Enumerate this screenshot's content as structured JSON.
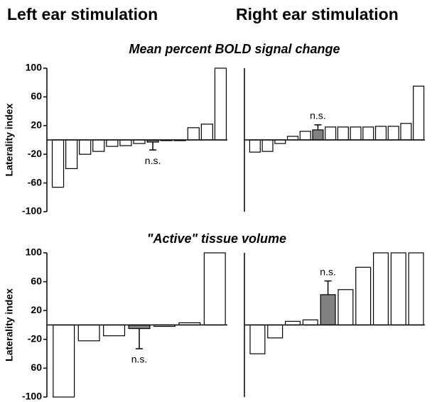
{
  "headers": [
    "Left ear stimulation",
    "Right ear stimulation"
  ],
  "sections": [
    "Mean percent BOLD signal change",
    "\"Active\" tissue volume"
  ],
  "chart_data": [
    {
      "type": "bar",
      "ylabel": "Laterality index",
      "ylim": [
        -100,
        100
      ],
      "yticks": [
        100,
        60,
        20,
        -20,
        -60,
        -100
      ],
      "categories": [
        null,
        null,
        null,
        null,
        null,
        null,
        null,
        null,
        null,
        null,
        null,
        null,
        null
      ],
      "values": [
        -66,
        -40,
        -20,
        -16,
        -9,
        -8,
        -5,
        -3,
        -1,
        -1,
        17,
        22,
        100
      ],
      "colors": [
        "#ffffff",
        "#ffffff",
        "#ffffff",
        "#ffffff",
        "#ffffff",
        "#ffffff",
        "#ffffff",
        "#808080",
        "#ffffff",
        "#ffffff",
        "#ffffff",
        "#ffffff",
        "#ffffff"
      ],
      "errors": [
        null,
        null,
        null,
        null,
        null,
        null,
        null,
        11,
        null,
        null,
        null,
        null,
        null
      ],
      "annotation": "n.s."
    },
    {
      "type": "bar",
      "ylim": [
        -100,
        100
      ],
      "categories": [
        null,
        null,
        null,
        null,
        null,
        null,
        null,
        null,
        null,
        null,
        null,
        null,
        null,
        null
      ],
      "values": [
        -17,
        -16,
        -5,
        5,
        12,
        14,
        18,
        18,
        18,
        18,
        19,
        19,
        23,
        75
      ],
      "colors": [
        "#ffffff",
        "#ffffff",
        "#ffffff",
        "#ffffff",
        "#ffffff",
        "#808080",
        "#ffffff",
        "#ffffff",
        "#ffffff",
        "#ffffff",
        "#ffffff",
        "#ffffff",
        "#ffffff",
        "#ffffff"
      ],
      "errors": [
        null,
        null,
        null,
        null,
        null,
        7,
        null,
        null,
        null,
        null,
        null,
        null,
        null,
        null
      ],
      "annotation": "n.s."
    },
    {
      "type": "bar",
      "ylabel": "Laterality index",
      "ylim": [
        -100,
        100
      ],
      "yticks": [
        100,
        60,
        20,
        -20,
        {
          "value": -60,
          "label": "60"
        },
        -100
      ],
      "categories": [
        null,
        null,
        null,
        null,
        null,
        null,
        null
      ],
      "values": [
        -100,
        -22,
        -15,
        -5,
        -2,
        3,
        100
      ],
      "colors": [
        "#ffffff",
        "#ffffff",
        "#ffffff",
        "#808080",
        "#ffffff",
        "#ffffff",
        "#ffffff"
      ],
      "errors": [
        null,
        null,
        null,
        28,
        null,
        null,
        null
      ],
      "annotation": "n.s."
    },
    {
      "type": "bar",
      "ylim": [
        -100,
        100
      ],
      "categories": [
        null,
        null,
        null,
        null,
        null,
        null,
        null,
        null,
        null,
        null
      ],
      "values": [
        -40,
        -18,
        5,
        7,
        42,
        49,
        80,
        100,
        100,
        100
      ],
      "colors": [
        "#ffffff",
        "#ffffff",
        "#ffffff",
        "#ffffff",
        "#808080",
        "#ffffff",
        "#ffffff",
        "#ffffff",
        "#ffffff",
        "#ffffff"
      ],
      "errors": [
        null,
        null,
        null,
        null,
        19,
        null,
        null,
        null,
        null,
        null
      ],
      "annotation": "n.s."
    }
  ]
}
